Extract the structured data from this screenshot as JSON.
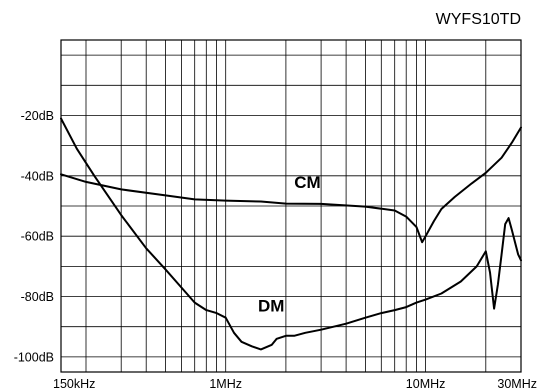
{
  "chart_data": {
    "type": "line",
    "title": "WYFS10TD",
    "xlabel": "",
    "ylabel": "",
    "x_scale": "log",
    "xlim": [
      0.15,
      30
    ],
    "ylim": [
      -105,
      5
    ],
    "x_grid_mhz": [
      0.15,
      0.2,
      0.3,
      0.4,
      0.5,
      0.6,
      0.7,
      0.8,
      0.9,
      1,
      2,
      3,
      4,
      5,
      6,
      7,
      8,
      9,
      10,
      20,
      30
    ],
    "y_grid_db": [
      -100,
      -90,
      -80,
      -70,
      -60,
      -50,
      -40,
      -30,
      -20,
      -10,
      0
    ],
    "x_ticks": [
      {
        "value": 0.15,
        "label": "150kHz"
      },
      {
        "value": 1,
        "label": "1MHz"
      },
      {
        "value": 10,
        "label": "10MHz"
      },
      {
        "value": 30,
        "label": "30MHz"
      }
    ],
    "y_ticks": [
      {
        "value": -20,
        "label": "-20dB"
      },
      {
        "value": -40,
        "label": "-40dB"
      },
      {
        "value": -60,
        "label": "-60dB"
      },
      {
        "value": -80,
        "label": "-80dB"
      },
      {
        "value": -100,
        "label": "-100dB"
      }
    ],
    "grid": true,
    "series": [
      {
        "name": "CM",
        "label_at": [
          2.2,
          -44
        ],
        "x": [
          0.15,
          0.2,
          0.3,
          0.5,
          0.7,
          1.0,
          1.5,
          2.0,
          3.0,
          5.0,
          7.0,
          8.0,
          9.0,
          9.6,
          10.0,
          11.0,
          12.0,
          14.0,
          17.0,
          20.0,
          24.0,
          27.0,
          30.0
        ],
        "values": [
          -39.5,
          -42,
          -44.5,
          -46.5,
          -47.8,
          -48.2,
          -48.5,
          -49.2,
          -49.3,
          -50.2,
          -51.5,
          -53.5,
          -57,
          -62,
          -60,
          -55,
          -51,
          -47,
          -42.5,
          -39,
          -34,
          -29,
          -24
        ]
      },
      {
        "name": "DM",
        "label_at": [
          1.45,
          -85
        ],
        "x": [
          0.15,
          0.18,
          0.22,
          0.3,
          0.4,
          0.5,
          0.6,
          0.7,
          0.8,
          0.9,
          1.0,
          1.1,
          1.2,
          1.35,
          1.5,
          1.7,
          1.8,
          2.0,
          2.2,
          2.5,
          3.0,
          4.0,
          5.0,
          6.0,
          7.0,
          8.0,
          9.0,
          10.0,
          12.0,
          15.0,
          18.0,
          20.0,
          21.0,
          22.0,
          23.0,
          24.0,
          25.0,
          26.0,
          27.0,
          28.0,
          29.0,
          30.0
        ],
        "values": [
          -21,
          -31,
          -40,
          -53,
          -64,
          -71,
          -77,
          -82,
          -84.5,
          -85.5,
          -87,
          -92,
          -95,
          -96.5,
          -97.5,
          -96,
          -94,
          -93,
          -93,
          -92,
          -91,
          -89,
          -87,
          -85.5,
          -84.5,
          -83.5,
          -82,
          -81,
          -79,
          -75,
          -70,
          -65,
          -72,
          -84,
          -76,
          -66,
          -56,
          -54,
          -58,
          -62,
          -66,
          -68
        ]
      }
    ]
  }
}
